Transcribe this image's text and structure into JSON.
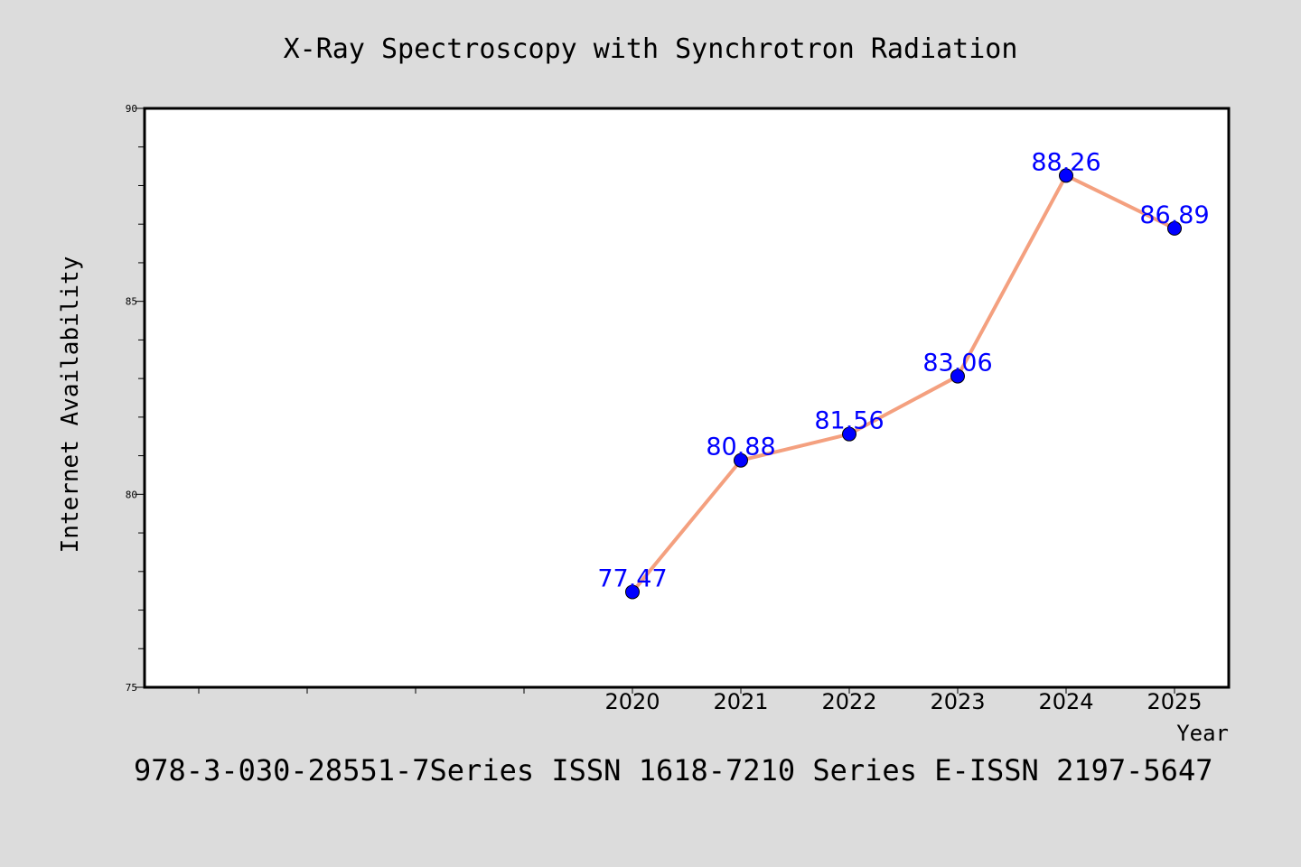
{
  "chart_data": {
    "type": "line",
    "title": "X-Ray Spectroscopy with Synchrotron Radiation",
    "xlabel": "Year",
    "ylabel": "Internet Availability",
    "footer": "978-3-030-28551-7Series ISSN 1618-7210 Series E-ISSN 2197-5647",
    "x": [
      "2020",
      "2021",
      "2022",
      "2023",
      "2024",
      "2025"
    ],
    "y": [
      77.47,
      80.88,
      81.56,
      83.06,
      88.26,
      86.89
    ],
    "point_labels": [
      "77.47",
      "80.88",
      "81.56",
      "83.06",
      "88.26",
      "86.89"
    ],
    "ylim": [
      75,
      90
    ],
    "y_ticks": [
      "75",
      "80",
      "85",
      "90"
    ],
    "x_tick_labels": [
      "2020",
      "2021",
      "2022",
      "2023",
      "2024",
      "2025"
    ],
    "grid": false,
    "legend": "none",
    "colors": {
      "line": "#f4a07f",
      "marker": "#0000ff",
      "label": "#0000ff",
      "background": "#dcdcdc",
      "plot_background": "#ffffff"
    }
  }
}
